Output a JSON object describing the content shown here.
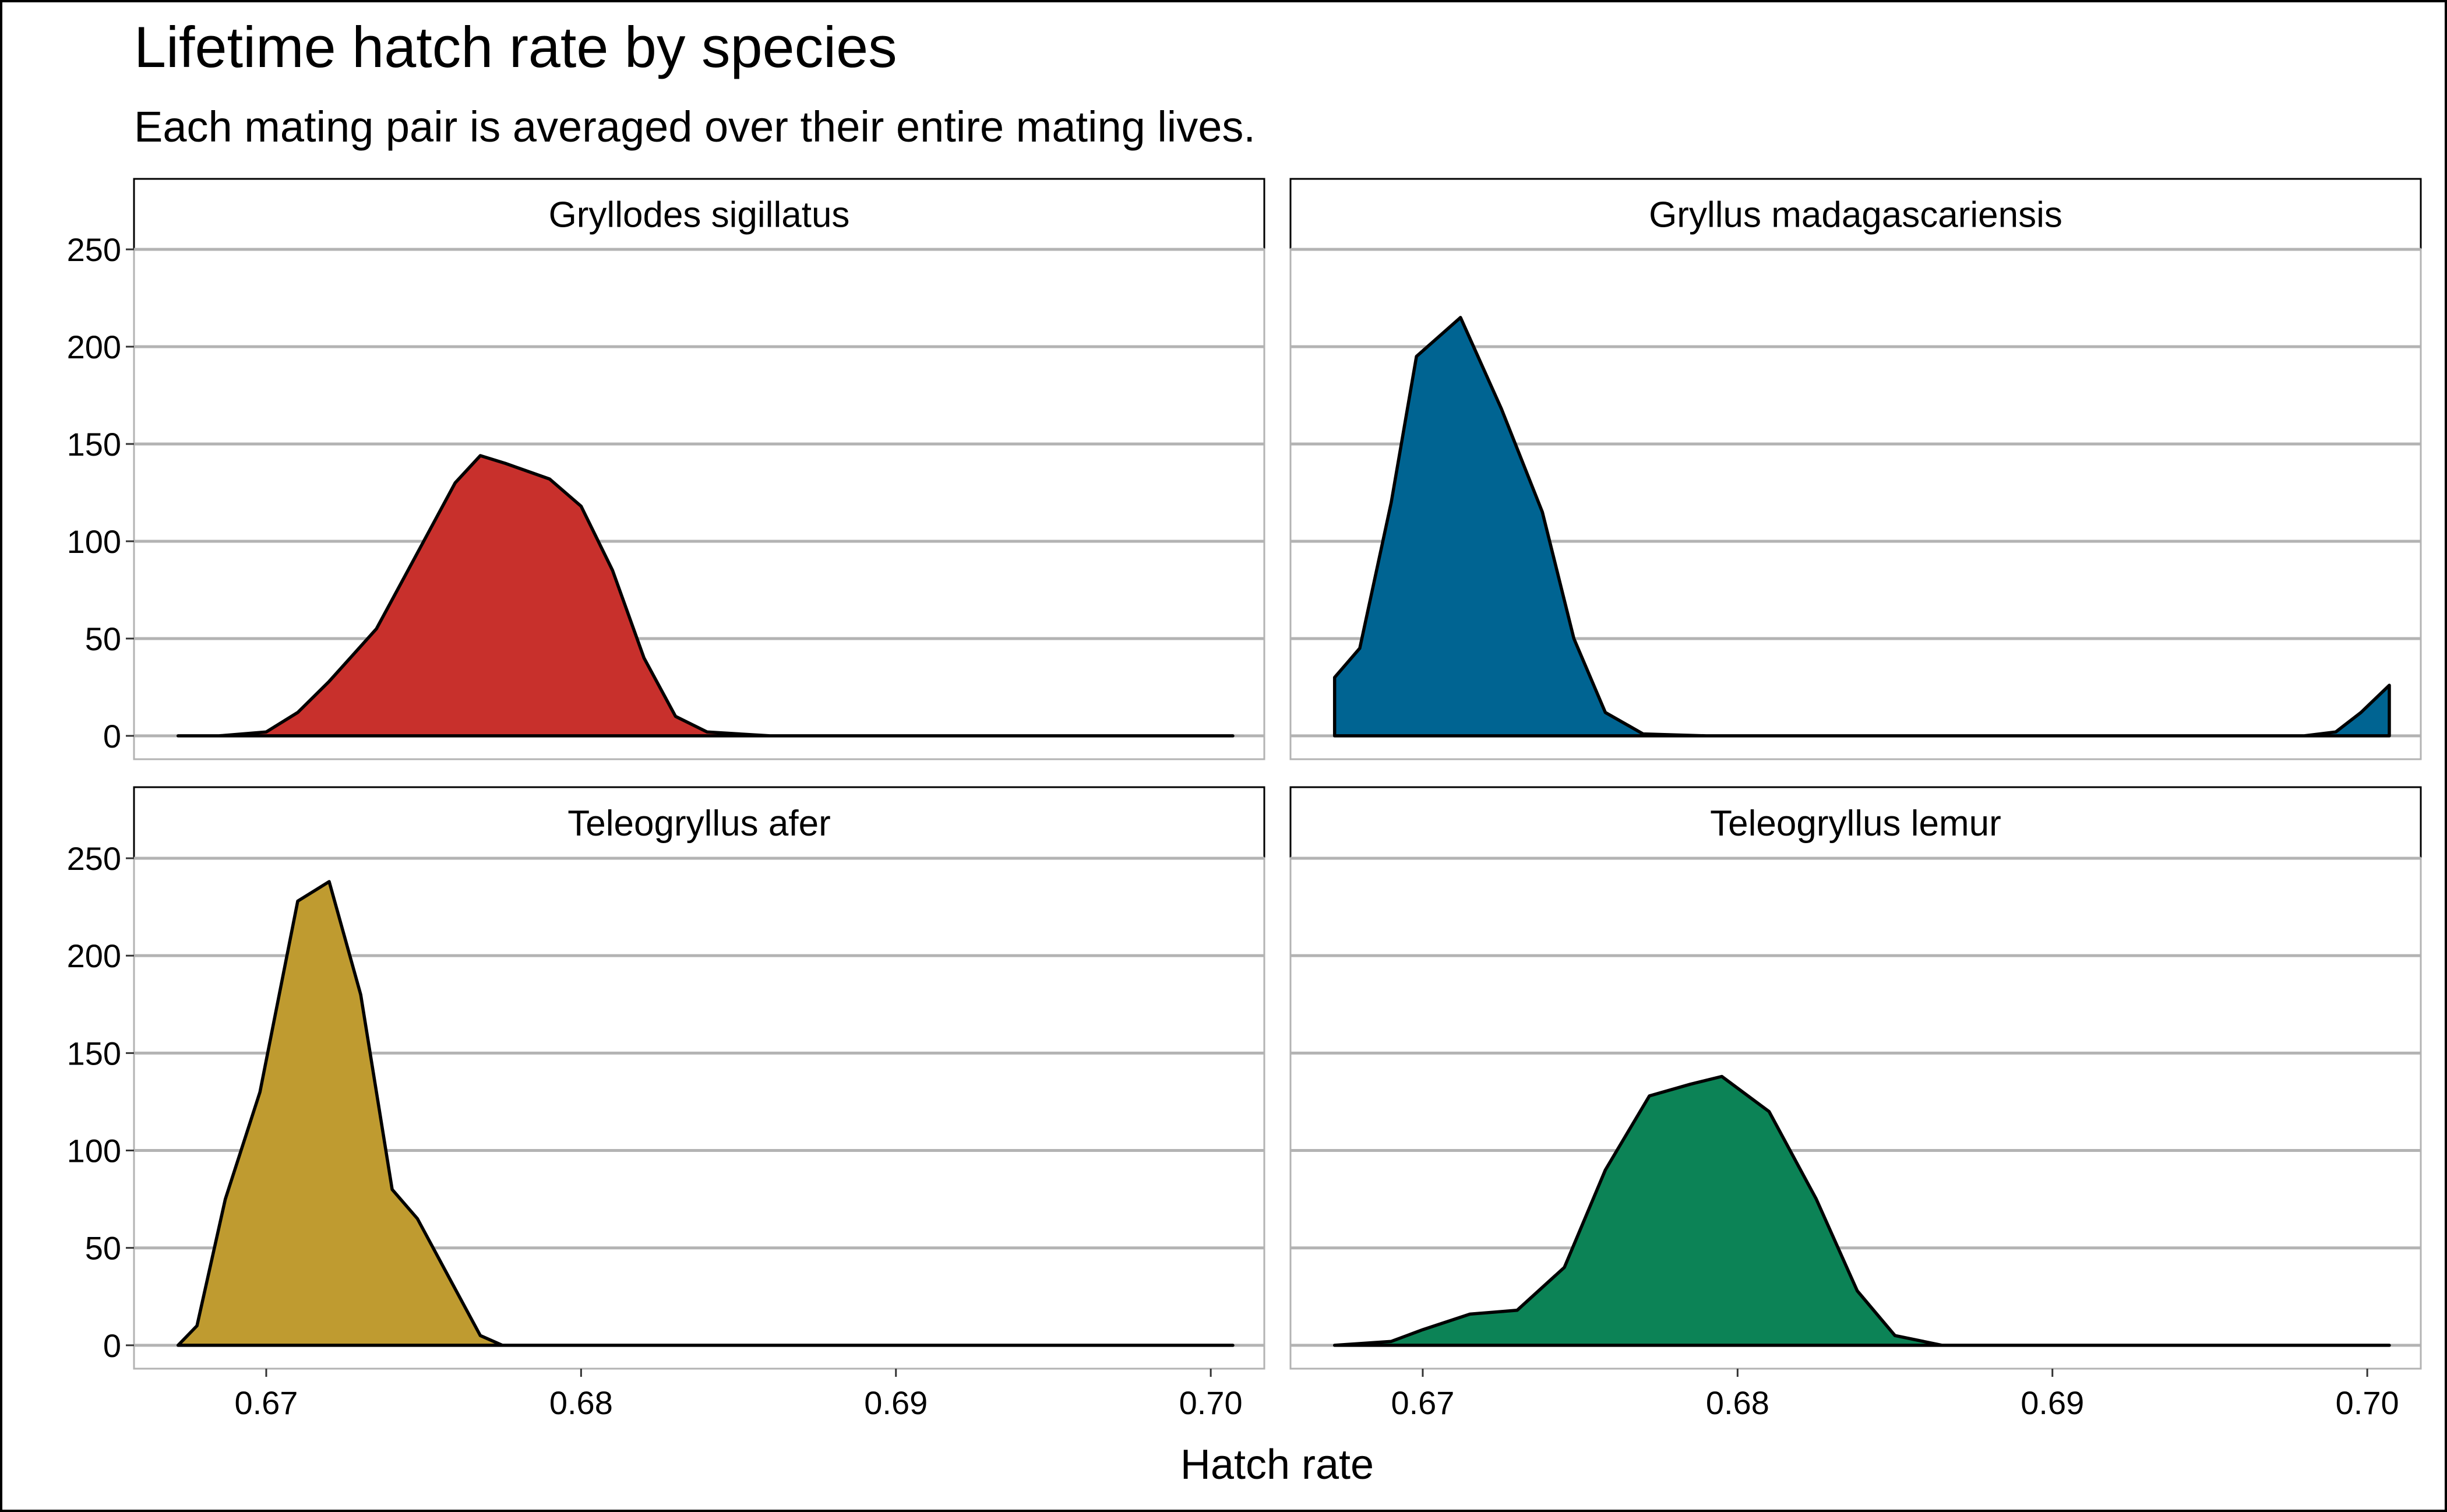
{
  "chart_data": {
    "type": "area",
    "title": "Lifetime hatch rate by species",
    "subtitle": "Each mating pair is averaged over their entire mating lives.",
    "xlabel": "Hatch rate",
    "ylabel": "",
    "xlim": [
      0.6658,
      0.7017
    ],
    "ylim": [
      -12,
      250
    ],
    "x_ticks": [
      0.67,
      0.68,
      0.69,
      0.7
    ],
    "x_tick_labels": [
      "0.67",
      "0.68",
      "0.69",
      "0.70"
    ],
    "y_ticks": [
      0,
      50,
      100,
      150,
      200,
      250
    ],
    "y_tick_labels": [
      "0",
      "50",
      "100",
      "150",
      "200",
      "250"
    ],
    "grid": "horizontal major",
    "panels": [
      {
        "facet": "Gryllodes sigillatus",
        "color": "#c8302c",
        "points": [
          [
            0.6672,
            0
          ],
          [
            0.6685,
            0
          ],
          [
            0.67,
            2
          ],
          [
            0.671,
            12
          ],
          [
            0.672,
            28
          ],
          [
            0.6735,
            55
          ],
          [
            0.675,
            100
          ],
          [
            0.676,
            130
          ],
          [
            0.6768,
            144
          ],
          [
            0.6776,
            140
          ],
          [
            0.679,
            132
          ],
          [
            0.68,
            118
          ],
          [
            0.681,
            85
          ],
          [
            0.682,
            40
          ],
          [
            0.683,
            10
          ],
          [
            0.684,
            2
          ],
          [
            0.686,
            0
          ],
          [
            0.7007,
            0
          ]
        ]
      },
      {
        "facet": "Gryllus madagascariensis",
        "color": "#006492",
        "points": [
          [
            0.6672,
            30
          ],
          [
            0.668,
            45
          ],
          [
            0.669,
            120
          ],
          [
            0.6698,
            195
          ],
          [
            0.6712,
            215
          ],
          [
            0.6725,
            168
          ],
          [
            0.6738,
            115
          ],
          [
            0.6748,
            50
          ],
          [
            0.6758,
            12
          ],
          [
            0.677,
            1
          ],
          [
            0.679,
            0
          ],
          [
            0.698,
            0
          ],
          [
            0.699,
            2
          ],
          [
            0.6998,
            12
          ],
          [
            0.7007,
            26
          ]
        ]
      },
      {
        "facet": "Teleogryllus afer",
        "color": "#bf9b30",
        "points": [
          [
            0.6672,
            0
          ],
          [
            0.6678,
            10
          ],
          [
            0.6687,
            75
          ],
          [
            0.6698,
            130
          ],
          [
            0.671,
            228
          ],
          [
            0.672,
            238
          ],
          [
            0.673,
            180
          ],
          [
            0.674,
            80
          ],
          [
            0.6748,
            65
          ],
          [
            0.6758,
            35
          ],
          [
            0.6768,
            5
          ],
          [
            0.6775,
            0
          ],
          [
            0.7007,
            0
          ]
        ]
      },
      {
        "facet": "Teleogryllus lemur",
        "color": "#0c8356",
        "points": [
          [
            0.6672,
            0
          ],
          [
            0.669,
            2
          ],
          [
            0.67,
            8
          ],
          [
            0.6715,
            16
          ],
          [
            0.673,
            18
          ],
          [
            0.6745,
            40
          ],
          [
            0.6758,
            90
          ],
          [
            0.6772,
            128
          ],
          [
            0.6785,
            134
          ],
          [
            0.6795,
            138
          ],
          [
            0.681,
            120
          ],
          [
            0.6825,
            75
          ],
          [
            0.6838,
            28
          ],
          [
            0.685,
            5
          ],
          [
            0.6865,
            0
          ],
          [
            0.7007,
            0
          ]
        ]
      }
    ]
  }
}
